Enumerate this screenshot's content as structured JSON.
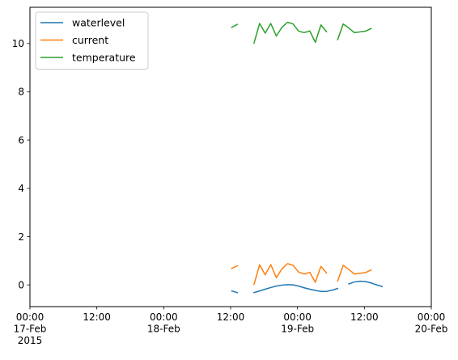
{
  "chart_data": {
    "type": "line",
    "title": "",
    "xlabel": "",
    "ylabel": "",
    "grid": false,
    "legend_position": "upper-left",
    "x_range_hours": [
      0,
      72
    ],
    "ylim": [
      -0.9,
      11.5
    ],
    "x_ticks": [
      {
        "hour": 0,
        "lines": [
          "00:00",
          "17-Feb",
          "2015"
        ]
      },
      {
        "hour": 12,
        "lines": [
          "12:00"
        ]
      },
      {
        "hour": 24,
        "lines": [
          "00:00",
          "18-Feb"
        ]
      },
      {
        "hour": 36,
        "lines": [
          "12:00"
        ]
      },
      {
        "hour": 48,
        "lines": [
          "00:00",
          "19-Feb"
        ]
      },
      {
        "hour": 60,
        "lines": [
          "12:00"
        ]
      },
      {
        "hour": 72,
        "lines": [
          "00:00",
          "20-Feb"
        ]
      }
    ],
    "y_ticks": [
      0,
      2,
      4,
      6,
      8,
      10
    ],
    "series": [
      {
        "name": "waterlevel",
        "color": "#1f77b4",
        "segments": [
          [
            [
              36.2,
              -0.25
            ],
            [
              37.2,
              -0.32
            ]
          ],
          [
            [
              40.2,
              -0.32
            ],
            [
              41.2,
              -0.25
            ],
            [
              42.2,
              -0.18
            ],
            [
              43.2,
              -0.11
            ],
            [
              44.2,
              -0.05
            ],
            [
              45.2,
              -0.01
            ],
            [
              46.2,
              0.01
            ],
            [
              47.2,
              0.0
            ],
            [
              48.2,
              -0.05
            ],
            [
              49.2,
              -0.12
            ],
            [
              50.2,
              -0.18
            ],
            [
              51.2,
              -0.23
            ],
            [
              52.2,
              -0.27
            ],
            [
              53.2,
              -0.27
            ],
            [
              54.2,
              -0.22
            ],
            [
              55.2,
              -0.15
            ]
          ],
          [
            [
              57.2,
              0.04
            ],
            [
              58.2,
              0.12
            ],
            [
              59.2,
              0.15
            ],
            [
              60.2,
              0.14
            ],
            [
              61.2,
              0.08
            ],
            [
              62.2,
              0.0
            ],
            [
              63.2,
              -0.07
            ]
          ]
        ]
      },
      {
        "name": "current",
        "color": "#ff7f0e",
        "segments": [
          [
            [
              36.2,
              0.68
            ],
            [
              37.2,
              0.79
            ]
          ],
          [
            [
              40.2,
              0.02
            ],
            [
              41.2,
              0.83
            ],
            [
              42.2,
              0.42
            ],
            [
              43.2,
              0.84
            ],
            [
              44.2,
              0.3
            ],
            [
              45.2,
              0.66
            ],
            [
              46.2,
              0.88
            ],
            [
              47.2,
              0.81
            ],
            [
              48.2,
              0.53
            ],
            [
              49.2,
              0.45
            ],
            [
              50.2,
              0.52
            ],
            [
              51.2,
              0.11
            ],
            [
              52.2,
              0.77
            ],
            [
              53.2,
              0.49
            ]
          ],
          [
            [
              55.2,
              0.16
            ],
            [
              56.2,
              0.81
            ],
            [
              57.2,
              0.64
            ],
            [
              58.2,
              0.45
            ],
            [
              59.2,
              0.48
            ],
            [
              60.2,
              0.51
            ],
            [
              61.2,
              0.62
            ]
          ]
        ]
      },
      {
        "name": "temperature",
        "color": "#2ca02c",
        "segments": [
          [
            [
              36.2,
              10.67
            ],
            [
              37.2,
              10.79
            ]
          ],
          [
            [
              40.2,
              10.02
            ],
            [
              41.2,
              10.83
            ],
            [
              42.2,
              10.43
            ],
            [
              43.2,
              10.83
            ],
            [
              44.2,
              10.31
            ],
            [
              45.2,
              10.67
            ],
            [
              46.2,
              10.88
            ],
            [
              47.2,
              10.81
            ],
            [
              48.2,
              10.51
            ],
            [
              49.2,
              10.45
            ],
            [
              50.2,
              10.52
            ],
            [
              51.2,
              10.05
            ],
            [
              52.2,
              10.77
            ],
            [
              53.2,
              10.49
            ]
          ],
          [
            [
              55.2,
              10.16
            ],
            [
              56.2,
              10.81
            ],
            [
              57.2,
              10.64
            ],
            [
              58.2,
              10.45
            ],
            [
              59.2,
              10.48
            ],
            [
              60.2,
              10.51
            ],
            [
              61.2,
              10.62
            ]
          ]
        ]
      }
    ]
  }
}
